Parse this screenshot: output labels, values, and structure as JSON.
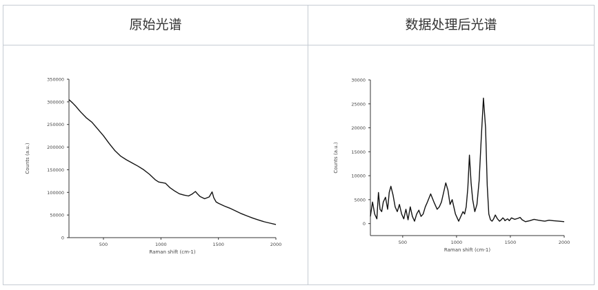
{
  "table": {
    "headers": [
      "原始光谱",
      "数据处理后光谱"
    ]
  },
  "chart_data": [
    {
      "type": "line",
      "title": "原始光谱",
      "xlabel": "Raman shift (cm-1)",
      "ylabel": "Counts (a.u.)",
      "xlim": [
        200,
        2000
      ],
      "ylim": [
        0,
        350000
      ],
      "xticks": [
        500,
        1000,
        1500,
        2000
      ],
      "yticks": [
        0,
        50000,
        100000,
        150000,
        200000,
        250000,
        300000,
        350000
      ],
      "grid": false,
      "series": [
        {
          "x": [
            200,
            230,
            260,
            300,
            350,
            400,
            450,
            500,
            550,
            600,
            650,
            700,
            750,
            800,
            850,
            900,
            950,
            980,
            1000,
            1040,
            1080,
            1120,
            1160,
            1200,
            1240,
            1270,
            1300,
            1320,
            1340,
            1380,
            1420,
            1445,
            1460,
            1480,
            1500,
            1550,
            1600,
            1650,
            1700,
            1750,
            1800,
            1850,
            1900,
            1950,
            2000
          ],
          "y": [
            305000,
            298000,
            290000,
            278000,
            265000,
            255000,
            240000,
            225000,
            208000,
            192000,
            180000,
            172000,
            165000,
            158000,
            150000,
            140000,
            128000,
            123000,
            122000,
            120000,
            110000,
            103000,
            97000,
            94000,
            92000,
            96000,
            102000,
            96000,
            91000,
            86000,
            90000,
            101000,
            88000,
            79000,
            76000,
            70000,
            65000,
            59000,
            53000,
            48000,
            43000,
            39000,
            35000,
            32000,
            29000
          ]
        }
      ]
    },
    {
      "type": "line",
      "title": "数据处理后光谱",
      "xlabel": "Raman shift (cm-1)",
      "ylabel": "Counts (a.u.)",
      "xlim": [
        200,
        2000
      ],
      "ylim": [
        -2500,
        30000
      ],
      "xticks": [
        500,
        1000,
        1500,
        2000
      ],
      "yticks": [
        0,
        5000,
        10000,
        15000,
        20000,
        25000,
        30000
      ],
      "grid": false,
      "series": [
        {
          "x": [
            200,
            220,
            240,
            260,
            275,
            290,
            305,
            320,
            340,
            360,
            375,
            390,
            410,
            430,
            450,
            470,
            490,
            510,
            530,
            550,
            570,
            590,
            610,
            630,
            650,
            670,
            690,
            710,
            730,
            760,
            790,
            820,
            840,
            860,
            880,
            900,
            920,
            940,
            960,
            990,
            1020,
            1040,
            1060,
            1075,
            1090,
            1105,
            1120,
            1135,
            1150,
            1170,
            1190,
            1210,
            1230,
            1250,
            1270,
            1285,
            1300,
            1315,
            1330,
            1345,
            1360,
            1380,
            1400,
            1415,
            1430,
            1440,
            1450,
            1460,
            1475,
            1490,
            1510,
            1540,
            1570,
            1590,
            1610,
            1640,
            1680,
            1720,
            1740,
            1760,
            1790,
            1820,
            1860,
            1900,
            1950,
            2000
          ],
          "y": [
            1500,
            4500,
            2000,
            1000,
            6500,
            3000,
            2500,
            4500,
            5500,
            3000,
            6500,
            7800,
            6000,
            3500,
            2500,
            4000,
            2000,
            1000,
            3000,
            800,
            3500,
            1500,
            500,
            2000,
            2800,
            1500,
            2000,
            3500,
            4500,
            6200,
            4500,
            3000,
            3500,
            4500,
            6500,
            8500,
            7000,
            4000,
            5000,
            2000,
            500,
            1500,
            2500,
            2000,
            3500,
            7500,
            14300,
            8500,
            5000,
            2500,
            4000,
            9000,
            18000,
            26200,
            20000,
            8000,
            2000,
            800,
            500,
            1000,
            1800,
            1000,
            500,
            800,
            1200,
            1000,
            600,
            800,
            1000,
            600,
            1200,
            900,
            1100,
            1300,
            800,
            400,
            600,
            900,
            800,
            700,
            600,
            500,
            700,
            600,
            500,
            400
          ]
        }
      ]
    }
  ]
}
